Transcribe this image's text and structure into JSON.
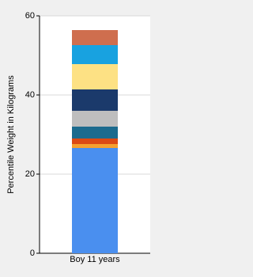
{
  "chart_data": {
    "type": "stacked-bar",
    "y_label": "Percentile Weight in Kilograms",
    "categories": [
      "Boy 11 years"
    ],
    "series": [
      {
        "color": "#4a8fef",
        "values": [
          26.6
        ]
      },
      {
        "color": "#f5a030",
        "values": [
          1.0
        ]
      },
      {
        "color": "#dc4a14",
        "values": [
          1.4
        ]
      },
      {
        "color": "#1c6b8e",
        "values": [
          3.0
        ]
      },
      {
        "color": "#bebebe",
        "values": [
          4.0
        ]
      },
      {
        "color": "#1b3a6b",
        "values": [
          5.4
        ]
      },
      {
        "color": "#fde184",
        "values": [
          6.4
        ]
      },
      {
        "color": "#18a2e0",
        "values": [
          4.8
        ]
      },
      {
        "color": "#cf6e4e",
        "values": [
          3.8
        ]
      }
    ],
    "ylim": [
      0,
      60
    ],
    "yticks": [
      0,
      20,
      40,
      60
    ],
    "grid": true
  }
}
